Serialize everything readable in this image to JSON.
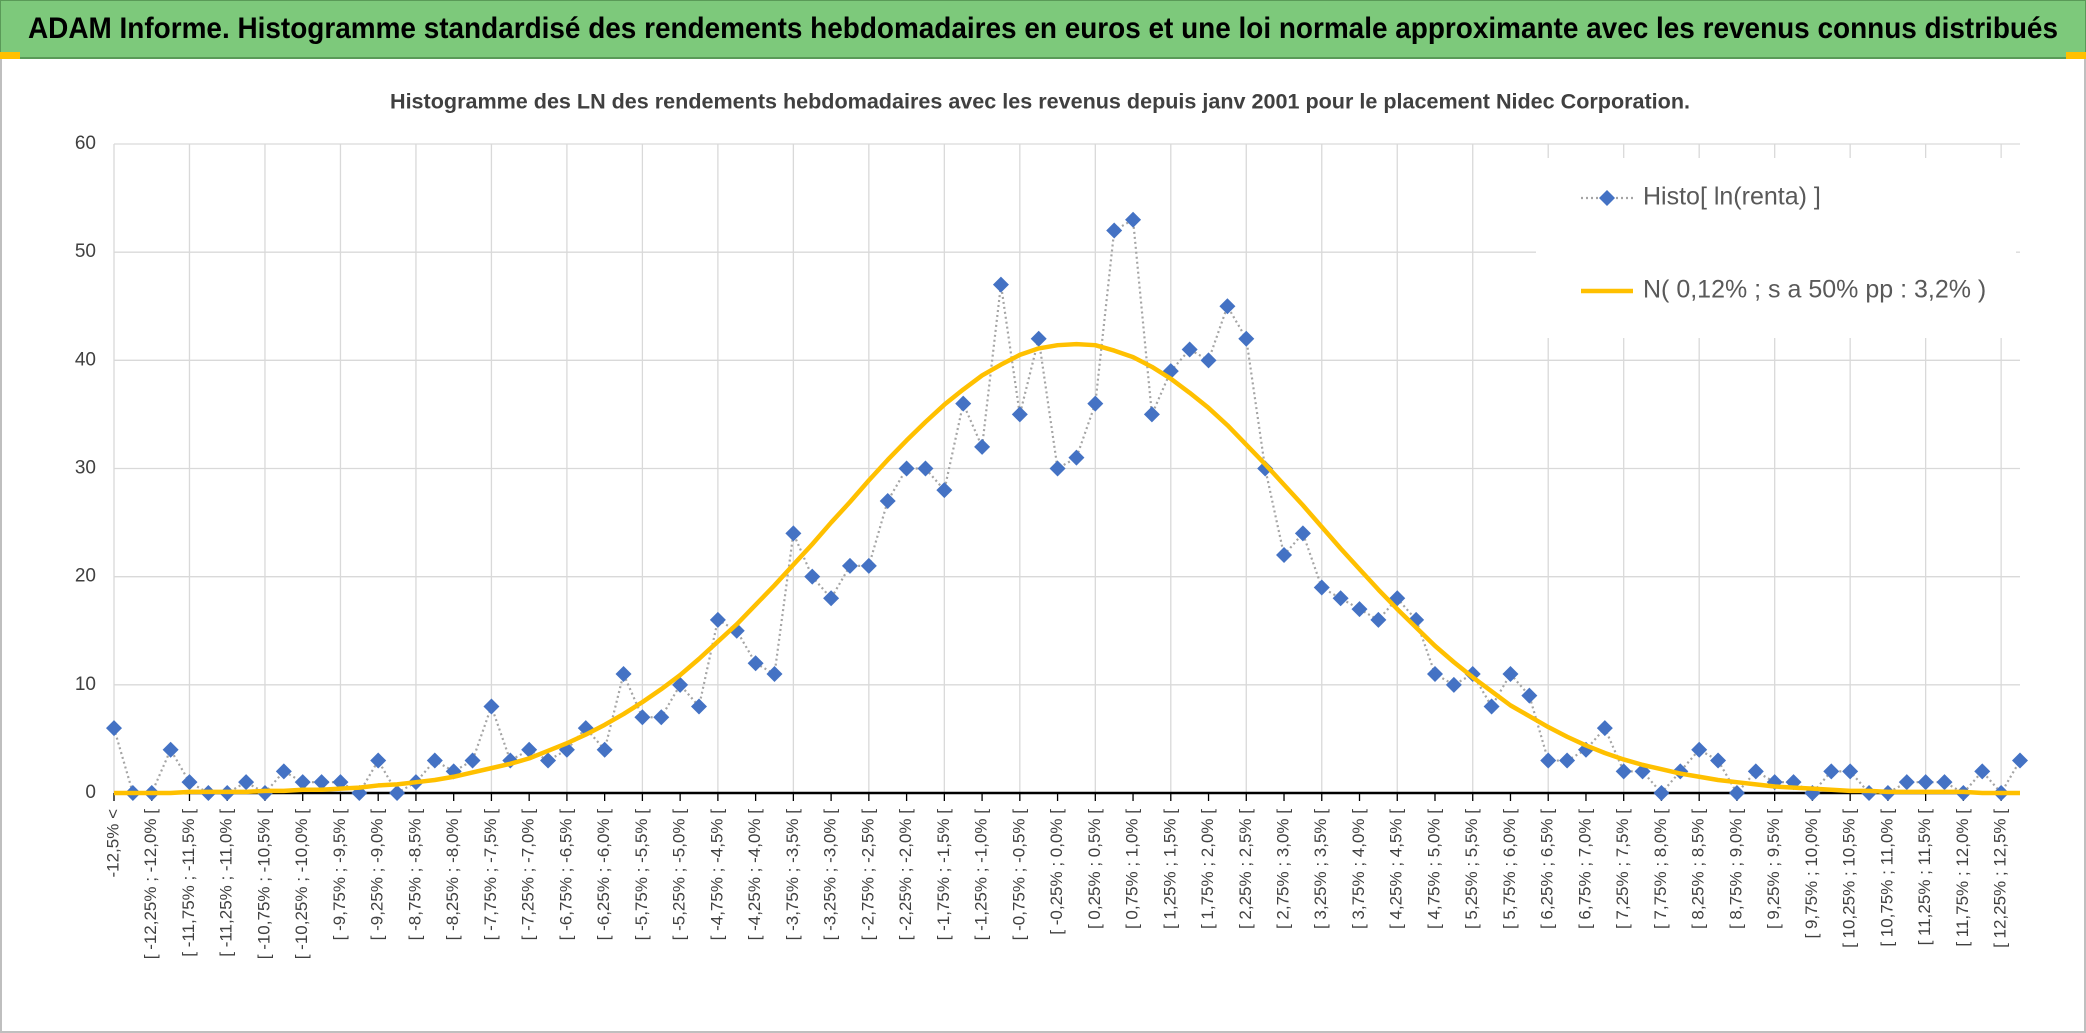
{
  "header": {
    "title": "ADAM Informe. Histogramme standardisé des rendements hebdomadaires en euros et une loi normale approximante avec les revenus connus distribués"
  },
  "chart_data": {
    "type": "line",
    "title": "Histogramme des LN des rendements hebdomadaires avec les revenus depuis janv 2001 pour le placement Nidec Corporation.",
    "categories": [
      "-12,5% <",
      null,
      "[ -12,25% ; -12,0% [",
      null,
      "[ -11,75% ; -11,5% [",
      null,
      "[ -11,25% ; -11,0% [",
      null,
      "[ -10,75% ; -10,5% [",
      null,
      "[ -10,25% ; -10,0% [",
      null,
      "[ -9,75% ; -9,5% [",
      null,
      "[ -9,25% ; -9,0% [",
      null,
      "[ -8,75% ; -8,5% [",
      null,
      "[ -8,25% ; -8,0% [",
      null,
      "[ -7,75% ; -7,5% [",
      null,
      "[ -7,25% ; -7,0% [",
      null,
      "[ -6,75% ; -6,5% [",
      null,
      "[ -6,25% ; -6,0% [",
      null,
      "[ -5,75% ; -5,5% [",
      null,
      "[ -5,25% ; -5,0% [",
      null,
      "[ -4,75% ; -4,5% [",
      null,
      "[ -4,25% ; -4,0% [",
      null,
      "[ -3,75% ; -3,5% [",
      null,
      "[ -3,25% ; -3,0% [",
      null,
      "[ -2,75% ; -2,5% [",
      null,
      "[ -2,25% ; -2,0% [",
      null,
      "[ -1,75% ; -1,5% [",
      null,
      "[ -1,25% ; -1,0% [",
      null,
      "[ -0,75% ; -0,5% [",
      null,
      "[ -0,25% ; 0,0% [",
      null,
      "[ 0,25% ; 0,5% [",
      null,
      "[ 0,75% ; 1,0% [",
      null,
      "[ 1,25% ; 1,5% [",
      null,
      "[ 1,75% ; 2,0% [",
      null,
      "[ 2,25% ; 2,5% [",
      null,
      "[ 2,75% ; 3,0% [",
      null,
      "[ 3,25% ; 3,5% [",
      null,
      "[ 3,75% ; 4,0% [",
      null,
      "[ 4,25% ; 4,5% [",
      null,
      "[ 4,75% ; 5,0% [",
      null,
      "[ 5,25% ; 5,5% [",
      null,
      "[ 5,75% ; 6,0% [",
      null,
      "[ 6,25% ; 6,5% [",
      null,
      "[ 6,75% ; 7,0% [",
      null,
      "[ 7,25% ; 7,5% [",
      null,
      "[ 7,75% ; 8,0% [",
      null,
      "[ 8,25% ; 8,5% [",
      null,
      "[ 8,75% ; 9,0% [",
      null,
      "[ 9,25% ; 9,5% [",
      null,
      "[ 9,75% ; 10,0% [",
      null,
      "[ 10,25% ; 10,5% [",
      null,
      "[ 10,75% ; 11,0% [",
      null,
      "[ 11,25% ; 11,5% [",
      null,
      "[ 11,75% ; 12,0% [",
      null,
      "[ 12,25% ; 12,5% [",
      null
    ],
    "series": [
      {
        "name": "Histo[ ln(renta) ]",
        "color": "#4472c4",
        "line_color": "#a5a5a5",
        "line_style": "dotted",
        "marker": "diamond",
        "values": [
          6,
          0,
          0,
          4,
          1,
          0,
          0,
          1,
          0,
          2,
          1,
          1,
          1,
          0,
          3,
          0,
          1,
          3,
          2,
          3,
          8,
          3,
          4,
          3,
          4,
          6,
          4,
          11,
          7,
          7,
          10,
          8,
          16,
          15,
          12,
          11,
          24,
          20,
          18,
          21,
          21,
          27,
          30,
          30,
          28,
          36,
          32,
          47,
          35,
          42,
          30,
          31,
          36,
          52,
          53,
          35,
          39,
          41,
          40,
          45,
          42,
          30,
          22,
          24,
          19,
          18,
          17,
          16,
          18,
          16,
          11,
          10,
          11,
          8,
          11,
          9,
          3,
          3,
          4,
          6,
          2,
          2,
          0,
          2,
          4,
          3,
          0,
          2,
          1,
          1,
          0,
          2,
          2,
          0,
          0,
          1,
          1,
          1,
          0,
          2,
          0,
          3
        ]
      },
      {
        "name": "N( 0,12% ; s a 50% pp : 3,2% )",
        "color": "#ffc000",
        "values": [
          0.0,
          0.0,
          0.0,
          0.0,
          0.1,
          0.1,
          0.1,
          0.1,
          0.2,
          0.2,
          0.3,
          0.3,
          0.4,
          0.5,
          0.7,
          0.8,
          1.0,
          1.2,
          1.5,
          1.9,
          2.3,
          2.7,
          3.2,
          3.9,
          4.6,
          5.4,
          6.3,
          7.3,
          8.4,
          9.6,
          10.9,
          12.4,
          14.0,
          15.6,
          17.4,
          19.2,
          21.1,
          23.0,
          25.0,
          26.9,
          28.9,
          30.8,
          32.6,
          34.3,
          35.9,
          37.3,
          38.6,
          39.6,
          40.5,
          41.1,
          41.4,
          41.5,
          41.4,
          40.9,
          40.3,
          39.4,
          38.3,
          37.0,
          35.6,
          34.0,
          32.2,
          30.4,
          28.5,
          26.6,
          24.6,
          22.6,
          20.7,
          18.8,
          17.0,
          15.3,
          13.6,
          12.1,
          10.7,
          9.4,
          8.1,
          7.1,
          6.1,
          5.2,
          4.4,
          3.7,
          3.1,
          2.6,
          2.2,
          1.8,
          1.5,
          1.2,
          1.0,
          0.8,
          0.6,
          0.5,
          0.4,
          0.3,
          0.2,
          0.2,
          0.1,
          0.1,
          0.1,
          0.1,
          0.1,
          0.0,
          0.0,
          0.0
        ]
      }
    ],
    "ylim": [
      0,
      60
    ],
    "yticks": [
      0,
      10,
      20,
      30,
      40,
      50,
      60
    ],
    "grid": true,
    "legend": "top-right"
  }
}
